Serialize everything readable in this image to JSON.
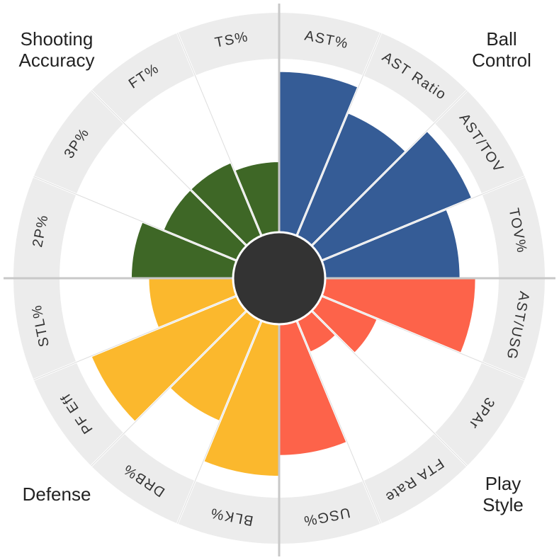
{
  "chart_data": {
    "type": "polar-bar",
    "ylim": [
      0,
      100
    ],
    "series": [
      {
        "name": "Ball Control",
        "color": "#355c96",
        "categories": [
          "AST%",
          "AST Ratio",
          "AST/TOV",
          "TOV%"
        ],
        "values": [
          93,
          77,
          94,
          78
        ]
      },
      {
        "name": "Play Style",
        "color": "#fd634a",
        "categories": [
          "AST/USG",
          "3PAr",
          "FTA Rate",
          "USG%"
        ],
        "values": [
          87,
          35,
          20,
          76
        ]
      },
      {
        "name": "Defense",
        "color": "#fbb82d",
        "categories": [
          "BLK%",
          "DRB%",
          "PF Eff",
          "STL%"
        ],
        "values": [
          88,
          63,
          91,
          49
        ]
      },
      {
        "name": "Shooting Accuracy",
        "color": "#3e6726",
        "categories": [
          "2P%",
          "3P%",
          "FT%",
          "TS%"
        ],
        "values": [
          59,
          46,
          46,
          41
        ]
      }
    ]
  }
}
